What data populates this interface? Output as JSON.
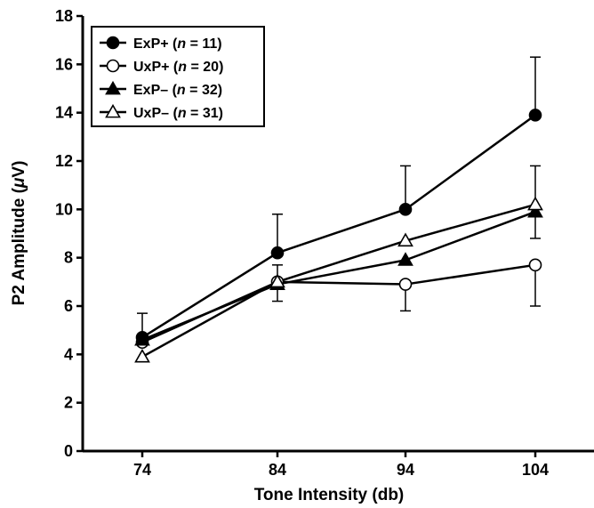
{
  "chart_data": {
    "type": "line",
    "xlabel": "Tone Intensity (db)",
    "ylabel_prefix": "P2 Amplitude (",
    "ylabel_unit": "μ",
    "ylabel_suffix": "V)",
    "categories": [
      "74",
      "84",
      "94",
      "104"
    ],
    "x": [
      74,
      84,
      94,
      104
    ],
    "ylim": [
      0,
      18
    ],
    "yticks": [
      "0",
      "2",
      "4",
      "6",
      "8",
      "10",
      "12",
      "14",
      "16",
      "18"
    ],
    "legend_placement": "top-left",
    "grid": false,
    "series": [
      {
        "name": "ExP+",
        "n_label": "n",
        "n_value": " = 11)",
        "n_open": " (",
        "marker": "circle-filled",
        "values": [
          4.7,
          8.2,
          10.0,
          13.9
        ],
        "err_upper": [
          5.7,
          9.8,
          11.8,
          16.3
        ],
        "err_lower": [
          null,
          null,
          null,
          null
        ]
      },
      {
        "name": "UxP+",
        "n_label": "n",
        "n_value": " = 20)",
        "n_open": " (",
        "marker": "circle-open",
        "values": [
          4.5,
          7.0,
          6.9,
          7.7
        ],
        "err_upper": [
          null,
          null,
          null,
          null
        ],
        "err_lower": [
          null,
          null,
          5.8,
          6.0
        ]
      },
      {
        "name": "ExP–",
        "n_label": "n",
        "n_value": " = 32)",
        "n_open": " (",
        "marker": "triangle-filled",
        "values": [
          4.6,
          6.9,
          7.9,
          9.9
        ],
        "err_upper": [
          null,
          null,
          null,
          null
        ],
        "err_lower": [
          null,
          6.2,
          null,
          8.8
        ]
      },
      {
        "name": "UxP–",
        "n_label": "n",
        "n_value": " = 31)",
        "n_open": " (",
        "marker": "triangle-open",
        "values": [
          3.9,
          7.0,
          8.7,
          10.2
        ],
        "err_upper": [
          null,
          7.7,
          null,
          11.8
        ],
        "err_lower": [
          null,
          null,
          null,
          null
        ]
      }
    ]
  }
}
